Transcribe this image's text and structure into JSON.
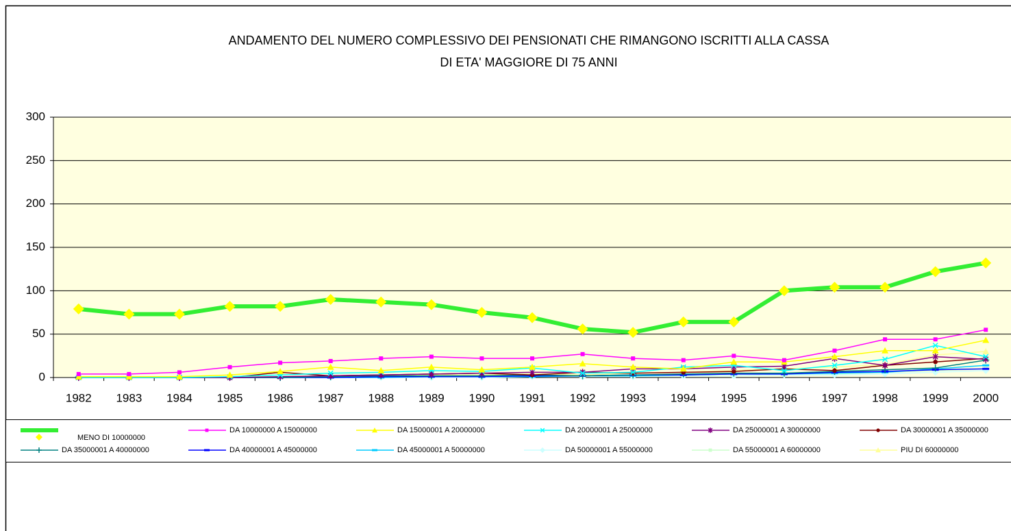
{
  "chart_data": {
    "type": "line",
    "title": [
      "ANDAMENTO DEL NUMERO COMPLESSIVO DEI PENSIONATI CHE RIMANGONO ISCRITTI ALLA CASSA",
      "DI ETA' MAGGIORE DI  75 ANNI"
    ],
    "categories": [
      "1982",
      "1983",
      "1984",
      "1985",
      "1986",
      "1987",
      "1988",
      "1989",
      "1990",
      "1991",
      "1992",
      "1993",
      "1994",
      "1995",
      "1996",
      "1997",
      "1998",
      "1999",
      "2000"
    ],
    "ylim": [
      0,
      300
    ],
    "yticks": [
      0,
      50,
      100,
      150,
      200,
      250,
      300
    ],
    "grid": true,
    "series": [
      {
        "name": "MENO DI 10000000",
        "color": "#33ee33",
        "marker": "diamond",
        "marker_color": "#ffff00",
        "values": [
          79,
          73,
          73,
          82,
          82,
          90,
          87,
          84,
          75,
          69,
          56,
          52,
          64,
          64,
          100,
          104,
          104,
          122,
          132
        ]
      },
      {
        "name": "DA 10000000 A 15000000",
        "color": "#ff00ff",
        "marker": "square",
        "values": [
          4,
          4,
          6,
          12,
          17,
          19,
          22,
          24,
          22,
          22,
          27,
          22,
          20,
          25,
          20,
          31,
          44,
          44,
          55
        ]
      },
      {
        "name": "DA 15000001 A 20000000",
        "color": "#ffff00",
        "marker": "triangle",
        "values": [
          1,
          1,
          1,
          3,
          7,
          12,
          8,
          12,
          9,
          12,
          16,
          12,
          10,
          18,
          18,
          24,
          31,
          31,
          43
        ]
      },
      {
        "name": "DA 20000001 A 25000000",
        "color": "#00ffff",
        "marker": "x",
        "values": [
          0,
          0,
          0,
          1,
          3,
          5,
          6,
          8,
          7,
          11,
          5,
          6,
          12,
          14,
          8,
          14,
          21,
          37,
          24
        ]
      },
      {
        "name": "DA 25000001 A 30000000",
        "color": "#800080",
        "marker": "star",
        "values": [
          0,
          0,
          0,
          0,
          1,
          2,
          3,
          4,
          5,
          6,
          6,
          10,
          10,
          12,
          13,
          22,
          14,
          24,
          21
        ]
      },
      {
        "name": "DA 30000001 A 35000000",
        "color": "#800000",
        "marker": "circle",
        "values": [
          0,
          0,
          0,
          0,
          6,
          2,
          3,
          4,
          5,
          3,
          6,
          5,
          6,
          7,
          10,
          8,
          14,
          18,
          22
        ]
      },
      {
        "name": "DA 35000001 A 40000000",
        "color": "#008080",
        "marker": "plus",
        "values": [
          0,
          0,
          0,
          0,
          0,
          1,
          2,
          2,
          2,
          3,
          2,
          3,
          4,
          5,
          5,
          7,
          9,
          11,
          20
        ]
      },
      {
        "name": "DA 40000001 A 45000000",
        "color": "#0000ff",
        "marker": "dash",
        "values": [
          0,
          0,
          0,
          0,
          0,
          0,
          1,
          1,
          1,
          2,
          2,
          3,
          3,
          4,
          4,
          6,
          7,
          9,
          10
        ]
      },
      {
        "name": "DA 45000001 A 50000000",
        "color": "#00ccff",
        "marker": "dash",
        "values": [
          0,
          0,
          0,
          0,
          0,
          0,
          0,
          1,
          1,
          1,
          2,
          2,
          3,
          4,
          4,
          5,
          6,
          10,
          14
        ]
      },
      {
        "name": "DA 50000001 A 55000000",
        "color": "#ccffff",
        "marker": "diamond",
        "values": [
          0,
          0,
          0,
          0,
          0,
          0,
          0,
          0,
          0,
          1,
          1,
          1,
          2,
          2,
          3,
          3,
          4,
          6,
          8
        ]
      },
      {
        "name": "DA 55000001 A 60000000",
        "color": "#ccffcc",
        "marker": "square",
        "values": [
          0,
          0,
          0,
          0,
          0,
          0,
          0,
          0,
          1,
          1,
          1,
          1,
          2,
          2,
          3,
          4,
          6,
          8,
          10
        ]
      },
      {
        "name": "PIU DI 60000000",
        "color": "#ffff99",
        "marker": "triangle",
        "values": [
          0,
          0,
          0,
          1,
          1,
          2,
          2,
          3,
          3,
          4,
          3,
          5,
          6,
          8,
          10,
          12,
          15,
          26,
          30
        ]
      }
    ]
  }
}
